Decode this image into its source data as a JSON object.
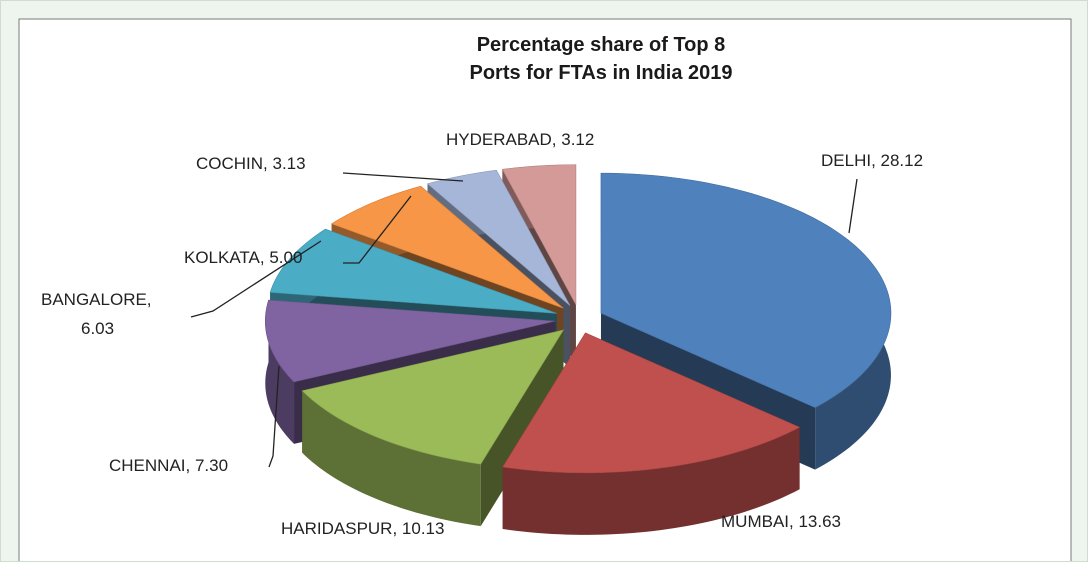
{
  "chart_data": {
    "type": "pie3d",
    "title": "Percentage share of Top 8\nPorts for FTAs in India 2019",
    "labels": [
      "DELHI, 28.12",
      "MUMBAI, 13.63",
      "HARIDASPUR, 10.13",
      "CHENNAI, 7.30",
      "BANGALORE,\n6.03",
      "KOLKATA, 5.00",
      "COCHIN, 3.13",
      "HYDERABAD, 3.12"
    ],
    "values": [
      28.12,
      13.63,
      10.13,
      7.3,
      6.03,
      5.0,
      3.13,
      3.12
    ],
    "colors": [
      "#4f81bd",
      "#c0504d",
      "#9bbb59",
      "#8064a2",
      "#4bacc6",
      "#f79646",
      "#a5b6d9",
      "#d49a98"
    ]
  }
}
